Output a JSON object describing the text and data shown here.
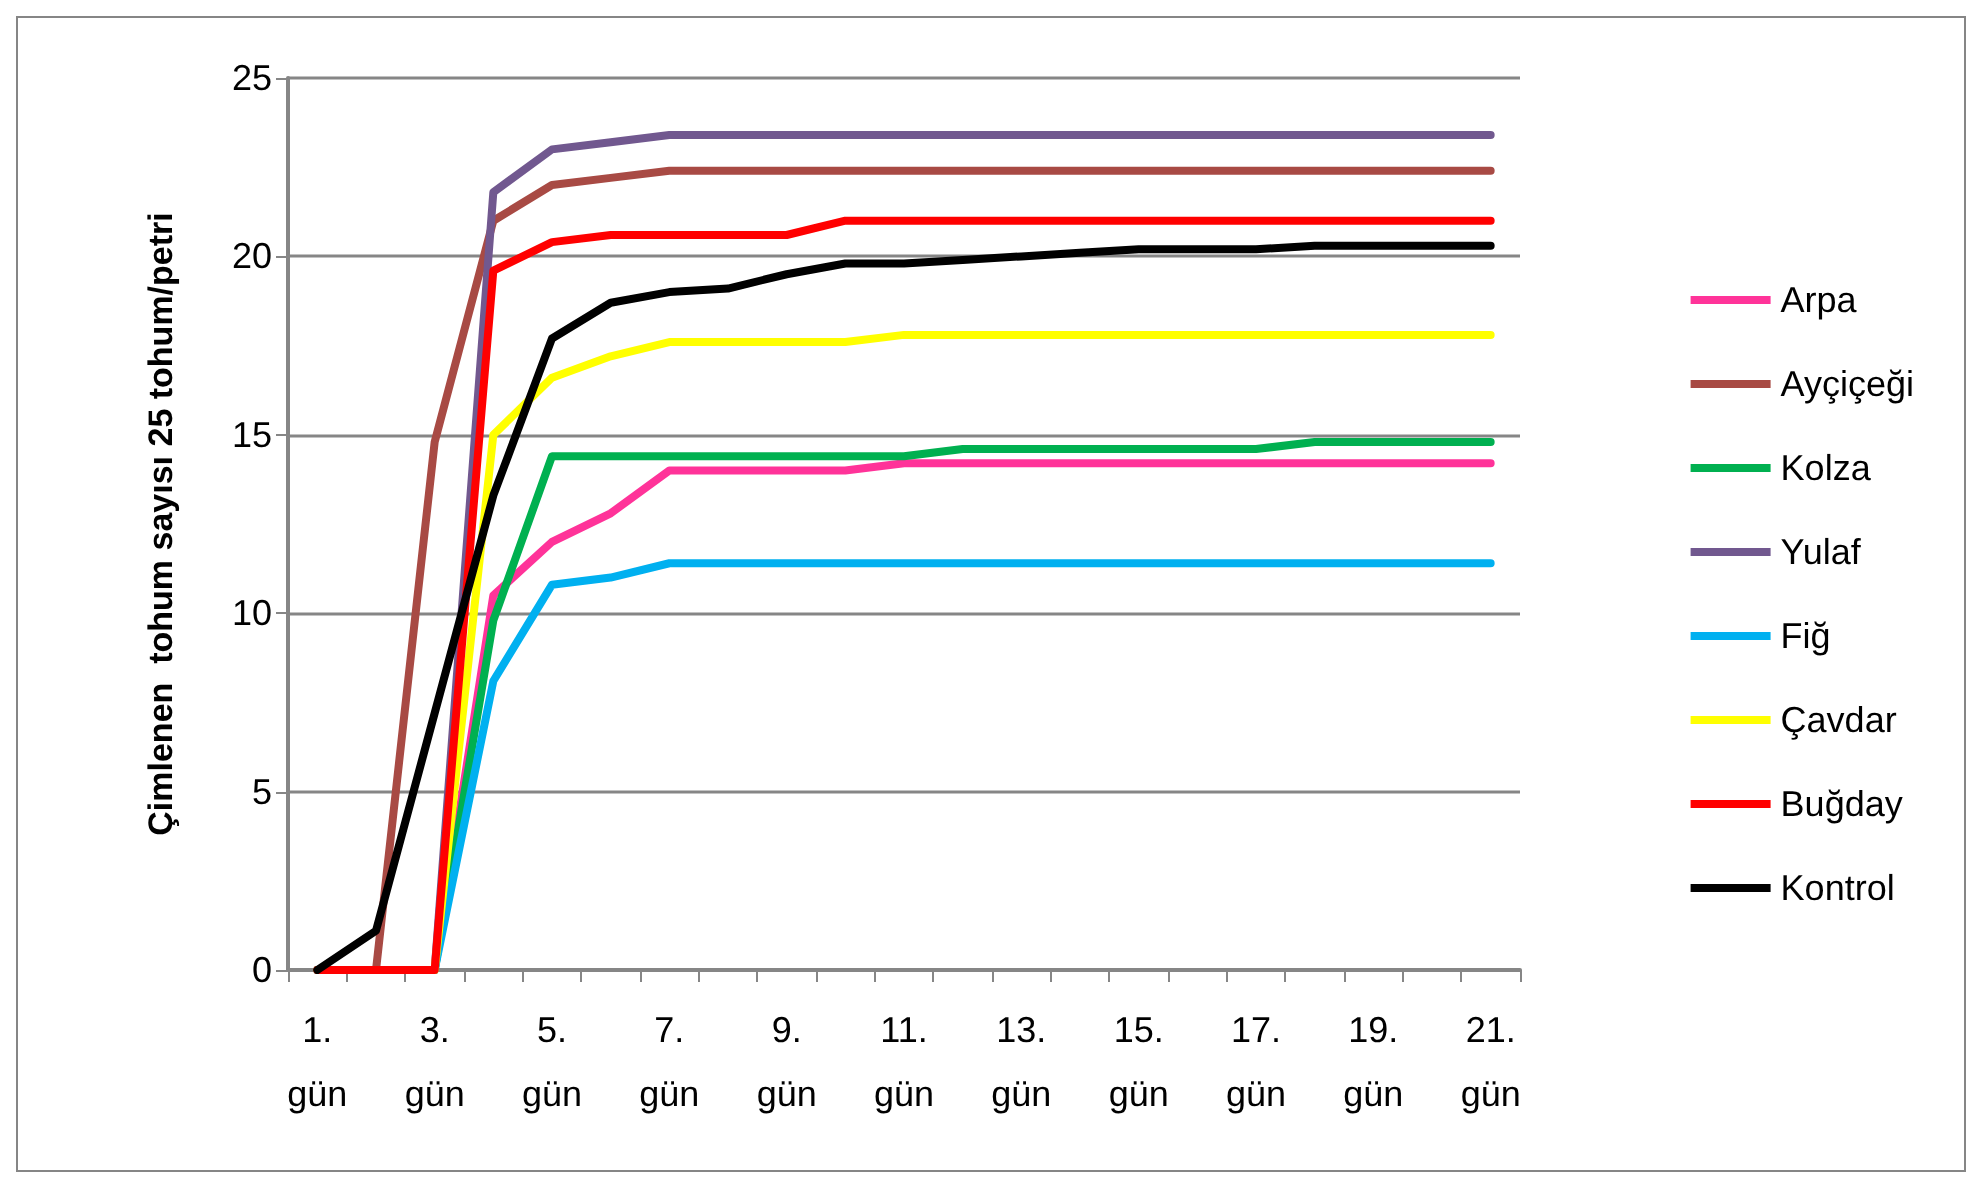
{
  "chart_data": {
    "type": "line",
    "ylabel": "Çimlenen  tohum sayısı 25 tohum/petri",
    "categories": [
      "1. gün",
      null,
      "3. gün",
      null,
      "5. gün",
      null,
      "7. gün",
      null,
      "9. gün",
      null,
      "11. gün",
      null,
      "13. gün",
      null,
      "15. gün",
      null,
      "17. gün",
      null,
      "19. gün",
      null,
      "21. gün"
    ],
    "series": [
      {
        "name": "Arpa",
        "color": "#ff3399",
        "values": [
          0,
          0,
          0,
          10.5,
          12,
          12.8,
          14,
          14,
          14,
          14,
          14.2,
          14.2,
          14.2,
          14.2,
          14.2,
          14.2,
          14.2,
          14.2,
          14.2,
          14.2,
          14.2
        ]
      },
      {
        "name": "Ayçiçeği",
        "color": "#a84a44",
        "values": [
          0,
          0,
          14.8,
          21,
          22,
          22.2,
          22.4,
          22.4,
          22.4,
          22.4,
          22.4,
          22.4,
          22.4,
          22.4,
          22.4,
          22.4,
          22.4,
          22.4,
          22.4,
          22.4,
          22.4
        ]
      },
      {
        "name": "Kolza",
        "color": "#00b050",
        "values": [
          0,
          0,
          0,
          9.8,
          14.4,
          14.4,
          14.4,
          14.4,
          14.4,
          14.4,
          14.4,
          14.6,
          14.6,
          14.6,
          14.6,
          14.6,
          14.6,
          14.8,
          14.8,
          14.8,
          14.8
        ]
      },
      {
        "name": "Yulaf",
        "color": "#71588f",
        "values": [
          0,
          0,
          0,
          21.8,
          23,
          23.2,
          23.4,
          23.4,
          23.4,
          23.4,
          23.4,
          23.4,
          23.4,
          23.4,
          23.4,
          23.4,
          23.4,
          23.4,
          23.4,
          23.4,
          23.4
        ]
      },
      {
        "name": "Fiğ",
        "color": "#00b0f0",
        "values": [
          0,
          0,
          0,
          8.1,
          10.8,
          11,
          11.4,
          11.4,
          11.4,
          11.4,
          11.4,
          11.4,
          11.4,
          11.4,
          11.4,
          11.4,
          11.4,
          11.4,
          11.4,
          11.4,
          11.4
        ]
      },
      {
        "name": "Çavdar",
        "color": "#ffff00",
        "values": [
          0,
          0,
          0,
          15,
          16.6,
          17.2,
          17.6,
          17.6,
          17.6,
          17.6,
          17.8,
          17.8,
          17.8,
          17.8,
          17.8,
          17.8,
          17.8,
          17.8,
          17.8,
          17.8,
          17.8
        ]
      },
      {
        "name": "Buğday",
        "color": "#ff0000",
        "values": [
          0,
          0,
          0,
          19.6,
          20.4,
          20.6,
          20.6,
          20.6,
          20.6,
          21,
          21,
          21,
          21,
          21,
          21,
          21,
          21,
          21,
          21,
          21,
          21
        ]
      },
      {
        "name": "Kontrol",
        "color": "#000000",
        "values": [
          0,
          1.1,
          7.2,
          13.3,
          17.7,
          18.7,
          19,
          19.1,
          19.5,
          19.8,
          19.8,
          19.9,
          20,
          20.1,
          20.2,
          20.2,
          20.2,
          20.3,
          20.3,
          20.3,
          20.3
        ]
      }
    ],
    "ylim": [
      0,
      25
    ],
    "yticks": [
      0,
      5,
      10,
      15,
      20,
      25
    ],
    "grid": "y",
    "legend": "right",
    "marker": "none",
    "line_style": "solid"
  }
}
